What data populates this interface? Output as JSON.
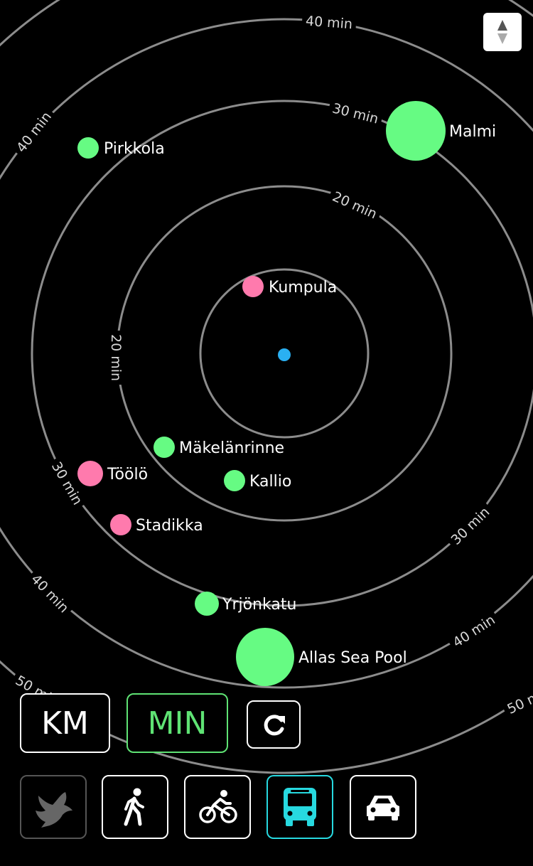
{
  "rings": [
    {
      "label": "20 min"
    },
    {
      "label": "30 min"
    },
    {
      "label": "40 min"
    },
    {
      "label": "50 min"
    }
  ],
  "places": [
    {
      "name": "Malmi",
      "color": "#66fb83"
    },
    {
      "name": "Pirkkola",
      "color": "#66fb83"
    },
    {
      "name": "Kumpula",
      "color": "#ff7aad"
    },
    {
      "name": "Mäkelänrinne",
      "color": "#66fb83"
    },
    {
      "name": "Töölö",
      "color": "#ff7aad"
    },
    {
      "name": "Kallio",
      "color": "#66fb83"
    },
    {
      "name": "Stadikka",
      "color": "#ff7aad"
    },
    {
      "name": "Yrjönkatu",
      "color": "#66fb83"
    },
    {
      "name": "Allas Sea Pool",
      "color": "#66fb83"
    }
  ],
  "center_color": "#2ab0f2",
  "controls": {
    "km_label": "KM",
    "min_label": "MIN",
    "refresh_icon": "refresh-icon",
    "sort_icon": "sort-arrows-icon"
  },
  "modes": [
    {
      "icon": "dove-icon",
      "state": "disabled"
    },
    {
      "icon": "walking-icon",
      "state": "normal"
    },
    {
      "icon": "bicycle-icon",
      "state": "normal"
    },
    {
      "icon": "bus-icon",
      "state": "active"
    },
    {
      "icon": "car-icon",
      "state": "normal"
    }
  ],
  "accent_colors": {
    "min_active": "#5fe374",
    "mode_active": "#27d9e0"
  }
}
